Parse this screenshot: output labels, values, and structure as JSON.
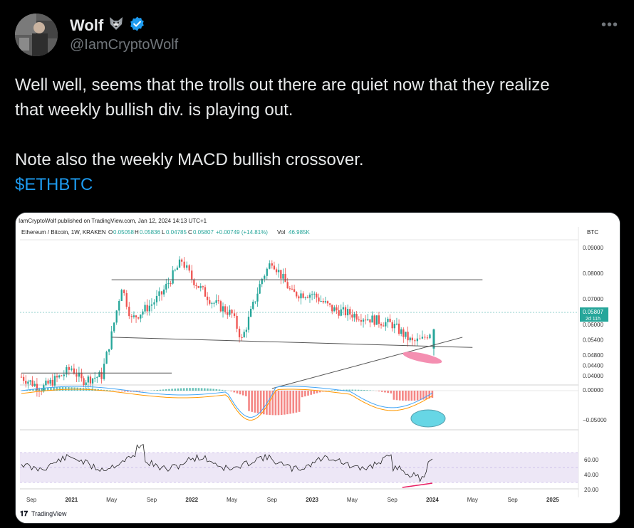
{
  "author": {
    "name": "Wolf",
    "handle": "@IamCryptoWolf",
    "name_emoji_icon": "wolf-face-icon",
    "verified_icon": "verified-badge-icon"
  },
  "more_label": "•••",
  "tweet": {
    "line1": "Well well, seems that the trolls out there are quiet now that they realize",
    "line2": "that weekly bullish div. is playing out.",
    "line3": "Note also the weekly MACD bullish crossover.",
    "cashtag": "$ETHBTC"
  },
  "chart": {
    "publisher": "IamCryptoWolf published on TradingView.com, Jan 12, 2024 14:13 UTC+1",
    "symbol_label": "Ethereum / Bitcoin, 1W, KRAKEN",
    "ohlc": {
      "o_label": "O",
      "o": "0.05058",
      "h_label": "H",
      "h": "0.05836",
      "l_label": "L",
      "l": "0.04785",
      "c_label": "C",
      "c": "0.05807",
      "chg": "+0.00749 (+14.81%)",
      "vol_label": "Vol",
      "vol": "46.985K"
    },
    "currency": "BTC",
    "price_badge": "0.05807",
    "price_badge_sub": "2d 11h",
    "price_ticks": [
      "0.09000",
      "0.08000",
      "0.07000",
      "0.06000",
      "0.05400",
      "0.04800",
      "0.04400",
      "0.04000"
    ],
    "macd_ticks": [
      "0.00000",
      "−0.05000"
    ],
    "rsi_ticks": [
      "60.00",
      "40.00",
      "20.00"
    ],
    "x_ticks": [
      "Sep",
      "2021",
      "May",
      "Sep",
      "2022",
      "May",
      "Sep",
      "2023",
      "May",
      "Sep",
      "2024",
      "May",
      "Sep",
      "2025"
    ],
    "logo": "TradingView",
    "colors": {
      "up": "#26a69a",
      "down": "#ef5350",
      "annotation_pink": "#f48fb1",
      "annotation_cyan": "#4dd0e1",
      "rsi_band": "#ede7f6"
    }
  },
  "chart_data": {
    "type": "candlestick",
    "title": "Ethereum / Bitcoin, 1W, KRAKEN",
    "ylabel": "BTC",
    "x_range": [
      "2020-08",
      "2025-03"
    ],
    "ylim": [
      0.038,
      0.092
    ],
    "path_anchors": [
      {
        "t": "2020-08",
        "p": 0.0395
      },
      {
        "t": "2020-10",
        "p": 0.035
      },
      {
        "t": "2020-12",
        "p": 0.04
      },
      {
        "t": "2021-01",
        "p": 0.043
      },
      {
        "t": "2021-02",
        "p": 0.038
      },
      {
        "t": "2021-04",
        "p": 0.04
      },
      {
        "t": "2021-05",
        "p": 0.056
      },
      {
        "t": "2021-06",
        "p": 0.075
      },
      {
        "t": "2021-07",
        "p": 0.062
      },
      {
        "t": "2021-09",
        "p": 0.068
      },
      {
        "t": "2021-10",
        "p": 0.072
      },
      {
        "t": "2021-12",
        "p": 0.085
      },
      {
        "t": "2022-01",
        "p": 0.078
      },
      {
        "t": "2022-03",
        "p": 0.069
      },
      {
        "t": "2022-05",
        "p": 0.064
      },
      {
        "t": "2022-06",
        "p": 0.054
      },
      {
        "t": "2022-08",
        "p": 0.078
      },
      {
        "t": "2022-09",
        "p": 0.085
      },
      {
        "t": "2022-11",
        "p": 0.072
      },
      {
        "t": "2023-01",
        "p": 0.072
      },
      {
        "t": "2023-03",
        "p": 0.066
      },
      {
        "t": "2023-05",
        "p": 0.064
      },
      {
        "t": "2023-07",
        "p": 0.062
      },
      {
        "t": "2023-09",
        "p": 0.06
      },
      {
        "t": "2023-11",
        "p": 0.053
      },
      {
        "t": "2023-12",
        "p": 0.054
      },
      {
        "t": "2024-01",
        "p": 0.0581
      }
    ],
    "last": {
      "o": 0.05058,
      "h": 0.05836,
      "l": 0.04785,
      "c": 0.05807
    },
    "lines": {
      "resistance": 0.0775,
      "support_left": 0.055,
      "support_right": 0.051,
      "old_resistance": 0.041
    },
    "rsi_levels": [
      70,
      30,
      50
    ],
    "macd_zero": 0.0,
    "indicators": [
      "MACD",
      "RSI"
    ]
  }
}
